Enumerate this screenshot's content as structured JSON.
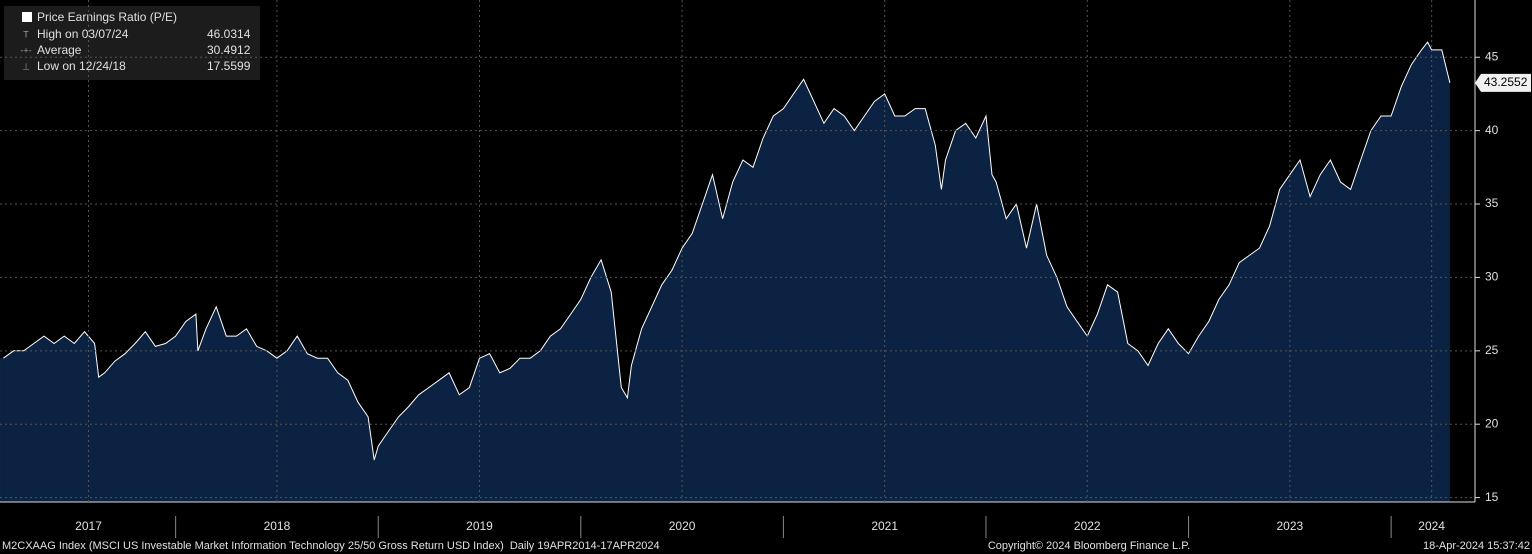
{
  "chart_data": {
    "type": "area",
    "series": [
      {
        "name": "Price Earnings Ratio (P/E)",
        "color": "#ffffff",
        "fill": "#0b2242",
        "x": [
          2017.15,
          2017.2,
          2017.25,
          2017.3,
          2017.35,
          2017.4,
          2017.45,
          2017.5,
          2017.55,
          2017.6,
          2017.62,
          2017.65,
          2017.7,
          2017.75,
          2017.8,
          2017.85,
          2017.9,
          2017.95,
          2018.0,
          2018.05,
          2018.1,
          2018.11,
          2018.15,
          2018.2,
          2018.25,
          2018.3,
          2018.35,
          2018.4,
          2018.45,
          2018.5,
          2018.55,
          2018.6,
          2018.65,
          2018.7,
          2018.75,
          2018.8,
          2018.85,
          2018.9,
          2018.95,
          2018.98,
          2019.0,
          2019.05,
          2019.1,
          2019.15,
          2019.2,
          2019.25,
          2019.3,
          2019.35,
          2019.4,
          2019.45,
          2019.5,
          2019.55,
          2019.6,
          2019.65,
          2019.7,
          2019.75,
          2019.8,
          2019.85,
          2019.9,
          2019.95,
          2020.0,
          2020.05,
          2020.1,
          2020.15,
          2020.2,
          2020.23,
          2020.25,
          2020.3,
          2020.35,
          2020.4,
          2020.45,
          2020.5,
          2020.55,
          2020.6,
          2020.65,
          2020.7,
          2020.75,
          2020.8,
          2020.85,
          2020.9,
          2020.95,
          2021.0,
          2021.05,
          2021.1,
          2021.15,
          2021.2,
          2021.25,
          2021.3,
          2021.35,
          2021.4,
          2021.45,
          2021.5,
          2021.55,
          2021.6,
          2021.65,
          2021.7,
          2021.75,
          2021.78,
          2021.8,
          2021.85,
          2021.9,
          2021.95,
          2022.0,
          2022.03,
          2022.05,
          2022.1,
          2022.15,
          2022.2,
          2022.25,
          2022.3,
          2022.35,
          2022.4,
          2022.45,
          2022.5,
          2022.55,
          2022.6,
          2022.65,
          2022.7,
          2022.75,
          2022.8,
          2022.85,
          2022.9,
          2022.95,
          2023.0,
          2023.05,
          2023.1,
          2023.15,
          2023.2,
          2023.25,
          2023.3,
          2023.35,
          2023.4,
          2023.45,
          2023.5,
          2023.55,
          2023.6,
          2023.65,
          2023.7,
          2023.75,
          2023.8,
          2023.85,
          2023.9,
          2023.95,
          2024.0,
          2024.05,
          2024.1,
          2024.15,
          2024.18,
          2024.2,
          2024.25,
          2024.29
        ],
        "values": [
          24.5,
          25,
          25,
          25.5,
          26,
          25.5,
          26,
          25.5,
          26.3,
          25.5,
          23.2,
          23.5,
          24.3,
          24.8,
          25.5,
          26.3,
          25.3,
          25.5,
          26,
          27,
          27.5,
          25,
          26.5,
          28,
          26,
          26,
          26.5,
          25.3,
          25,
          24.5,
          25,
          26,
          24.8,
          24.5,
          24.5,
          23.5,
          23,
          21.5,
          20.5,
          17.5599,
          18.5,
          19.5,
          20.5,
          21.2,
          22,
          22.5,
          23,
          23.5,
          22,
          22.5,
          24.5,
          24.8,
          23.5,
          23.8,
          24.5,
          24.5,
          25,
          26,
          26.5,
          27.5,
          28.5,
          30,
          31.2,
          29,
          22.5,
          21.8,
          24,
          26.5,
          28,
          29.5,
          30.5,
          32,
          33,
          35,
          37,
          34,
          36.5,
          38,
          37.5,
          39.5,
          41,
          41.5,
          42.5,
          43.5,
          42,
          40.5,
          41.5,
          41,
          40,
          41,
          42,
          42.5,
          41,
          41,
          41.5,
          41.5,
          39,
          36,
          38,
          40,
          40.5,
          39.5,
          41,
          37,
          36.5,
          34,
          35,
          32,
          35,
          31.5,
          30,
          28,
          27,
          26,
          27.5,
          29.5,
          29,
          25.5,
          25,
          24,
          25.5,
          26.5,
          25.5,
          24.8,
          26,
          27,
          28.5,
          29.5,
          31,
          31.5,
          32,
          33.5,
          36,
          37,
          38,
          35.5,
          37,
          38,
          36.5,
          36,
          38,
          40,
          41,
          41,
          43,
          44.5,
          45.5,
          46.0314,
          45.5,
          45.5,
          43.2552
        ]
      }
    ],
    "stats": [
      {
        "label": "High on 03/07/24",
        "value": 46.0314
      },
      {
        "label": "Average",
        "value": 30.4912
      },
      {
        "label": "Low on 12/24/18",
        "value": 17.5599
      }
    ],
    "xlim": [
      2017.133,
      2024.414
    ],
    "ylim": [
      14.7,
      48.9
    ],
    "yticks": [
      15,
      20,
      25,
      30,
      35,
      40,
      45
    ],
    "xticks": [
      {
        "value": 2017.57,
        "label": "2017"
      },
      {
        "value": 2018.5,
        "label": "2018"
      },
      {
        "value": 2019.5,
        "label": "2019"
      },
      {
        "value": 2020.5,
        "label": "2020"
      },
      {
        "value": 2021.5,
        "label": "2021"
      },
      {
        "value": 2022.5,
        "label": "2022"
      },
      {
        "value": 2023.5,
        "label": "2023"
      },
      {
        "value": 2024.2,
        "label": "2024"
      }
    ],
    "grid": true,
    "footer": {
      "left": "M2CXAAG Index (MSCI US Investable Market Information Technology 25/50 Gross Return USD Index)  Daily 19APR2014-17APR2024",
      "center": "Copyright© 2024 Bloomberg Finance L.P.",
      "right": "18-Apr-2024 15:37:42"
    }
  }
}
